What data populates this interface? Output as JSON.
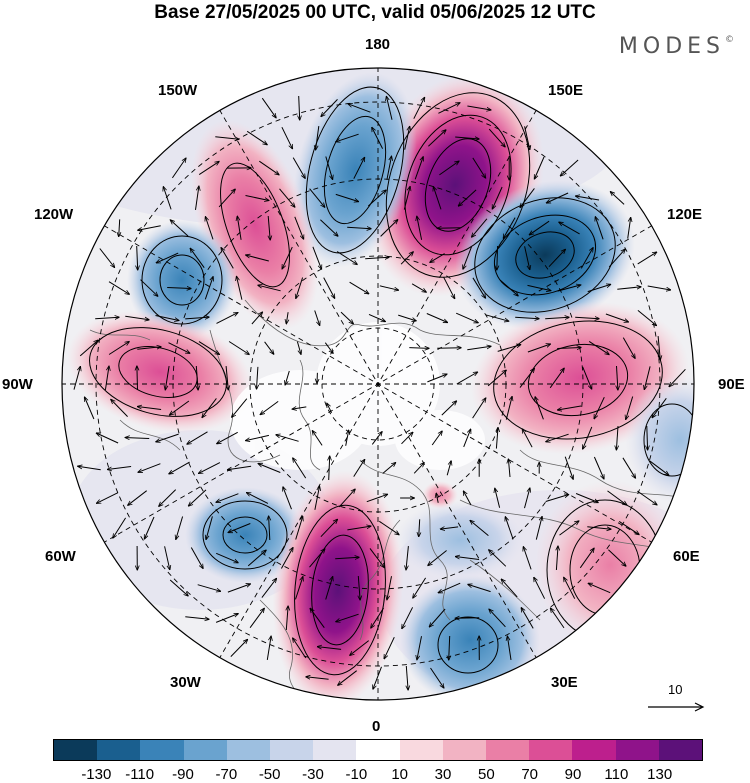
{
  "title": "Base 27/05/2025 00 UTC, valid 05/06/2025 12 UTC",
  "brand": {
    "name": "MODES",
    "mark": "©"
  },
  "longitude_labels": {
    "lon_180": "180",
    "lon_150e": "150E",
    "lon_120e": "120E",
    "lon_90e": "90E",
    "lon_60e": "60E",
    "lon_30e": "30E",
    "lon_0": "0",
    "lon_30w": "30W",
    "lon_60w": "60W",
    "lon_90w": "90W",
    "lon_120w": "120W",
    "lon_150w": "150W"
  },
  "reference_vector": {
    "value": "10"
  },
  "colorbar": {
    "colors": [
      "#0b3a5a",
      "#1a5f8f",
      "#3a83b8",
      "#6aa3cf",
      "#9dbfe0",
      "#c8d4ea",
      "#e4e4f0",
      "#ffffff",
      "#f9d9df",
      "#f2b3c3",
      "#ea7fa6",
      "#dc4f96",
      "#bd1f8d",
      "#8f138a",
      "#5c1179"
    ],
    "ticks": [
      "-130",
      "-110",
      "-90",
      "-70",
      "-50",
      "-30",
      "-10",
      "10",
      "30",
      "50",
      "70",
      "90",
      "110",
      "130"
    ]
  }
}
